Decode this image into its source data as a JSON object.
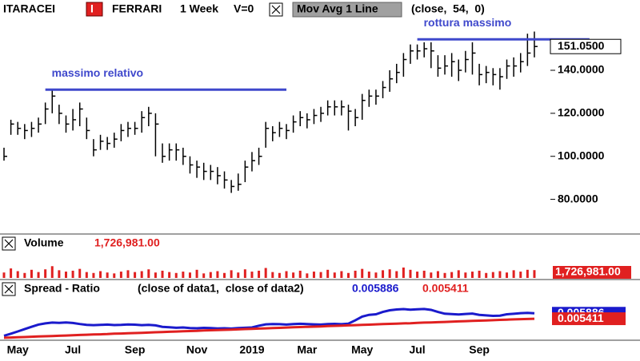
{
  "chart_data": [
    {
      "type": "ohlc",
      "symbol": "ITARACEI",
      "badge": "I",
      "symbol2": "FERRARI",
      "interval": "1 Week",
      "volume_setting": "V=0",
      "indicator": "Mov Avg 1 Line",
      "indicator_params": "(close,  54,  0)",
      "color": "#000000",
      "close": [
        100,
        115,
        113,
        112,
        113,
        115,
        122,
        128,
        120,
        115,
        117,
        122,
        112,
        103,
        107,
        106,
        108,
        112,
        113,
        113,
        118,
        120,
        115,
        100,
        103,
        103,
        100,
        96,
        95,
        93,
        93,
        91,
        89,
        86,
        87,
        95,
        98,
        100,
        113,
        111,
        113,
        112,
        116,
        118,
        117,
        119,
        120,
        123,
        123,
        123,
        121,
        118,
        126,
        128,
        128,
        132,
        136,
        139,
        145,
        149,
        149,
        150,
        149,
        141,
        142,
        144,
        140,
        145,
        148,
        138,
        139,
        138,
        137,
        142,
        142,
        144,
        148,
        151.05
      ],
      "high": [
        104,
        117,
        116,
        115,
        116,
        118,
        125,
        131,
        124,
        119,
        122,
        125,
        118,
        108,
        110,
        109,
        111,
        115,
        116,
        116,
        121,
        123,
        120,
        106,
        106,
        106,
        104,
        100,
        98,
        97,
        96,
        95,
        93,
        89,
        92,
        98,
        102,
        104,
        116,
        114,
        116,
        115,
        119,
        121,
        120,
        122,
        123,
        126,
        126,
        126,
        124,
        122,
        129,
        131,
        131,
        135,
        140,
        143,
        148,
        152,
        152,
        153,
        153,
        147,
        147,
        148,
        145,
        149,
        153,
        143,
        142,
        141,
        141,
        145,
        146,
        148,
        157,
        158
      ],
      "low": [
        98,
        110,
        110,
        108,
        109,
        111,
        115,
        120,
        115,
        111,
        112,
        114,
        108,
        100,
        103,
        103,
        104,
        107,
        109,
        110,
        111,
        114,
        100,
        97,
        98,
        98,
        96,
        92,
        90,
        89,
        89,
        87,
        85,
        83,
        84,
        88,
        93,
        96,
        104,
        107,
        109,
        108,
        111,
        114,
        113,
        115,
        116,
        119,
        119,
        119,
        112,
        114,
        117,
        123,
        124,
        127,
        130,
        134,
        137,
        143,
        145,
        146,
        141,
        137,
        138,
        137,
        135,
        139,
        138,
        133,
        134,
        133,
        131,
        136,
        137,
        139,
        142,
        146
      ],
      "last_label": "151.0500",
      "ylim": [
        65,
        164.5
      ],
      "yticks": [
        {
          "value": 80,
          "label": "80.0000"
        },
        {
          "value": 100,
          "label": "100.0000"
        },
        {
          "value": 120,
          "label": "120.0000"
        },
        {
          "value": 140,
          "label": "140.0000"
        }
      ],
      "annotations": [
        {
          "text": "massimo relativo",
          "value": 131,
          "start": 6,
          "end": 41,
          "color": "#3f48cc"
        },
        {
          "text": "rottura massimo",
          "value": 154.4,
          "start": 60,
          "end": 85,
          "color": "#3f48cc"
        }
      ]
    },
    {
      "type": "bar",
      "title": "Volume",
      "color": "#e02020",
      "last_label": "1,726,981.00",
      "values": [
        1200000,
        2100000,
        1500000,
        1100000,
        1800000,
        1300000,
        1900000,
        2600000,
        1700000,
        1400000,
        1600000,
        2000000,
        1300000,
        1100000,
        1500000,
        1200000,
        1000000,
        1400000,
        1700000,
        1300000,
        1500000,
        1900000,
        1200000,
        1600000,
        1300000,
        1100000,
        1400000,
        1200000,
        1800000,
        1000000,
        1300000,
        1500000,
        1100000,
        1700000,
        1200000,
        1900000,
        1400000,
        1600000,
        2200000,
        1300000,
        1100000,
        1500000,
        1200000,
        1600000,
        1000000,
        1400000,
        1300000,
        1800000,
        1200000,
        1500000,
        1100000,
        1600000,
        2000000,
        1400000,
        1200000,
        1700000,
        1900000,
        1500000,
        2300000,
        1800000,
        1400000,
        1600000,
        1200000,
        1500000,
        1100000,
        1300000,
        1700000,
        1200000,
        1400000,
        1600000,
        1100000,
        1300000,
        1500000,
        1200000,
        1700000,
        1400000,
        1800000,
        1726981
      ],
      "ylim": [
        0,
        6000000
      ]
    },
    {
      "type": "line",
      "title": "Spread - Ratio",
      "subtitle": "(close of data1,  close of data2)",
      "categories": [
        null,
        null,
        "May",
        null,
        null,
        null,
        null,
        null,
        null,
        null,
        "Jul",
        null,
        null,
        null,
        null,
        null,
        null,
        null,
        null,
        "Sep",
        null,
        null,
        null,
        null,
        null,
        null,
        null,
        null,
        "Nov",
        null,
        null,
        null,
        null,
        null,
        null,
        null,
        "2019",
        null,
        null,
        null,
        null,
        null,
        null,
        null,
        "Mar",
        null,
        null,
        null,
        null,
        null,
        null,
        null,
        "May",
        null,
        null,
        null,
        null,
        null,
        null,
        null,
        "Jul",
        null,
        null,
        null,
        null,
        null,
        null,
        null,
        null,
        "Sep",
        null,
        null,
        null,
        null,
        null,
        null,
        null,
        null
      ],
      "series": [
        {
          "color": "#1a1acc",
          "last_label": "0.005886",
          "values": [
            0.00392,
            0.0041,
            0.0043,
            0.0045,
            0.0047,
            0.0049,
            0.005,
            0.00507,
            0.00505,
            0.00508,
            0.00504,
            0.00495,
            0.00488,
            0.00485,
            0.00487,
            0.0049,
            0.00486,
            0.00488,
            0.00491,
            0.00489,
            0.00485,
            0.00487,
            0.00483,
            0.0047,
            0.00466,
            0.00462,
            0.00465,
            0.0046,
            0.00458,
            0.00461,
            0.00459,
            0.00456,
            0.00458,
            0.00455,
            0.0046,
            0.00462,
            0.00465,
            0.0048,
            0.00492,
            0.00495,
            0.00493,
            0.0049,
            0.00494,
            0.00497,
            0.00495,
            0.00492,
            0.0049,
            0.00494,
            0.00496,
            0.00493,
            0.00498,
            0.00527,
            0.0056,
            0.00575,
            0.0058,
            0.006,
            0.00615,
            0.00622,
            0.00625,
            0.0062,
            0.00624,
            0.00626,
            0.00618,
            0.006,
            0.00585,
            0.00582,
            0.00578,
            0.00583,
            0.00586,
            0.00575,
            0.0057,
            0.00566,
            0.00568,
            0.0058,
            0.00584,
            0.0059,
            0.00592,
            0.005886
          ]
        },
        {
          "color": "#e02020",
          "last_label": "0.005411",
          "values": [
            0.00375,
            0.00377,
            0.00379,
            0.00381,
            0.00384,
            0.00386,
            0.00388,
            0.0039,
            0.00392,
            0.00394,
            0.00397,
            0.00399,
            0.00401,
            0.00403,
            0.00405,
            0.00407,
            0.0041,
            0.00412,
            0.00414,
            0.00416,
            0.00418,
            0.0042,
            0.00423,
            0.00425,
            0.00427,
            0.00429,
            0.00431,
            0.00433,
            0.00435,
            0.00438,
            0.0044,
            0.00442,
            0.00444,
            0.00446,
            0.00448,
            0.00451,
            0.00453,
            0.00455,
            0.00457,
            0.00459,
            0.00461,
            0.00464,
            0.00466,
            0.00468,
            0.0047,
            0.00472,
            0.00474,
            0.00477,
            0.00479,
            0.00481,
            0.00483,
            0.00485,
            0.00487,
            0.00489,
            0.00492,
            0.00494,
            0.00496,
            0.00498,
            0.005,
            0.00502,
            0.00505,
            0.00507,
            0.00509,
            0.00511,
            0.00513,
            0.00515,
            0.00518,
            0.0052,
            0.00522,
            0.00524,
            0.00526,
            0.00528,
            0.00531,
            0.00533,
            0.00535,
            0.00537,
            0.00539,
            0.005411
          ]
        }
      ],
      "ylim": [
        0.0036,
        0.0073
      ]
    }
  ]
}
